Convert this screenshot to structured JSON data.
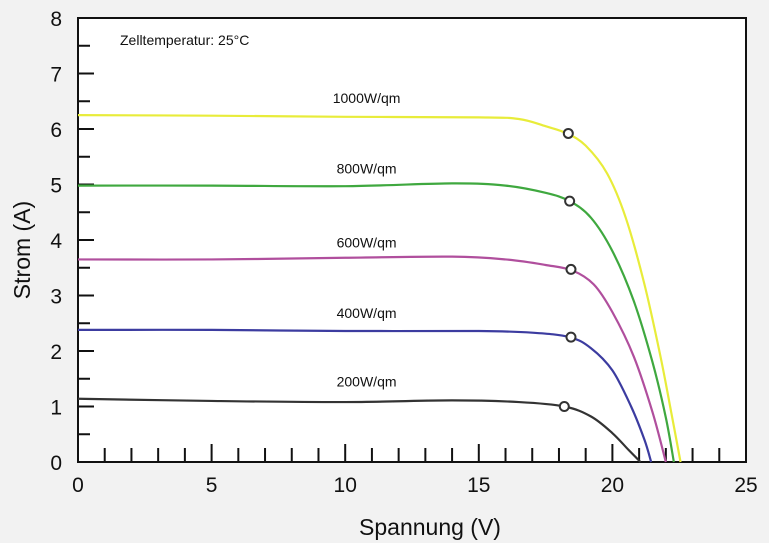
{
  "chart_data": {
    "type": "line",
    "title": "",
    "xlabel": "Spannung (V)",
    "ylabel": "Strom (A)",
    "xlim": [
      0,
      25
    ],
    "ylim": [
      0,
      8
    ],
    "xticks": [
      0,
      5,
      10,
      15,
      20,
      25
    ],
    "yticks": [
      0,
      1,
      2,
      3,
      4,
      5,
      6,
      7,
      8
    ],
    "grid": false,
    "legend": "none",
    "annotation": "Zelltemperatur: 25°C",
    "series": [
      {
        "name": "1000W/qm",
        "color": "#e8ec3a",
        "points": [
          [
            0,
            6.25
          ],
          [
            5,
            6.24
          ],
          [
            10,
            6.22
          ],
          [
            15,
            6.21
          ],
          [
            16.5,
            6.18
          ],
          [
            17.5,
            6.05
          ],
          [
            18.3,
            5.92
          ],
          [
            19,
            5.7
          ],
          [
            19.8,
            5.2
          ],
          [
            20.5,
            4.4
          ],
          [
            21.2,
            3.2
          ],
          [
            21.8,
            1.9
          ],
          [
            22.2,
            0.9
          ],
          [
            22.55,
            0
          ]
        ],
        "mpp": [
          18.35,
          5.92
        ]
      },
      {
        "name": "800W/qm",
        "color": "#3fa83f",
        "points": [
          [
            0,
            4.98
          ],
          [
            5,
            4.98
          ],
          [
            10,
            4.97
          ],
          [
            14,
            5.02
          ],
          [
            16,
            4.98
          ],
          [
            17.5,
            4.85
          ],
          [
            18.4,
            4.7
          ],
          [
            19.2,
            4.4
          ],
          [
            20,
            3.8
          ],
          [
            20.8,
            2.9
          ],
          [
            21.5,
            1.8
          ],
          [
            22,
            0.8
          ],
          [
            22.3,
            0
          ]
        ],
        "mpp": [
          18.4,
          4.7
        ]
      },
      {
        "name": "600W/qm",
        "color": "#b04f9d",
        "points": [
          [
            0,
            3.65
          ],
          [
            5,
            3.65
          ],
          [
            10,
            3.68
          ],
          [
            14,
            3.7
          ],
          [
            16,
            3.65
          ],
          [
            17.5,
            3.55
          ],
          [
            18.5,
            3.45
          ],
          [
            19.3,
            3.2
          ],
          [
            20,
            2.7
          ],
          [
            20.8,
            1.9
          ],
          [
            21.5,
            0.9
          ],
          [
            22,
            0
          ]
        ],
        "mpp": [
          18.45,
          3.47
        ]
      },
      {
        "name": "400W/qm",
        "color": "#3c3ca0",
        "points": [
          [
            0,
            2.38
          ],
          [
            5,
            2.38
          ],
          [
            10,
            2.36
          ],
          [
            15,
            2.36
          ],
          [
            17,
            2.33
          ],
          [
            18.4,
            2.25
          ],
          [
            19.2,
            2.05
          ],
          [
            20,
            1.65
          ],
          [
            20.7,
            1.0
          ],
          [
            21.2,
            0.4
          ],
          [
            21.45,
            0
          ]
        ],
        "mpp": [
          18.45,
          2.25
        ]
      },
      {
        "name": "200W/qm",
        "color": "#333333",
        "points": [
          [
            0,
            1.14
          ],
          [
            5,
            1.1
          ],
          [
            10,
            1.08
          ],
          [
            14,
            1.11
          ],
          [
            16.5,
            1.08
          ],
          [
            18.2,
            1.0
          ],
          [
            19.2,
            0.82
          ],
          [
            20,
            0.52
          ],
          [
            20.6,
            0.22
          ],
          [
            21.05,
            0
          ]
        ],
        "mpp": [
          18.2,
          1.0
        ]
      }
    ]
  }
}
